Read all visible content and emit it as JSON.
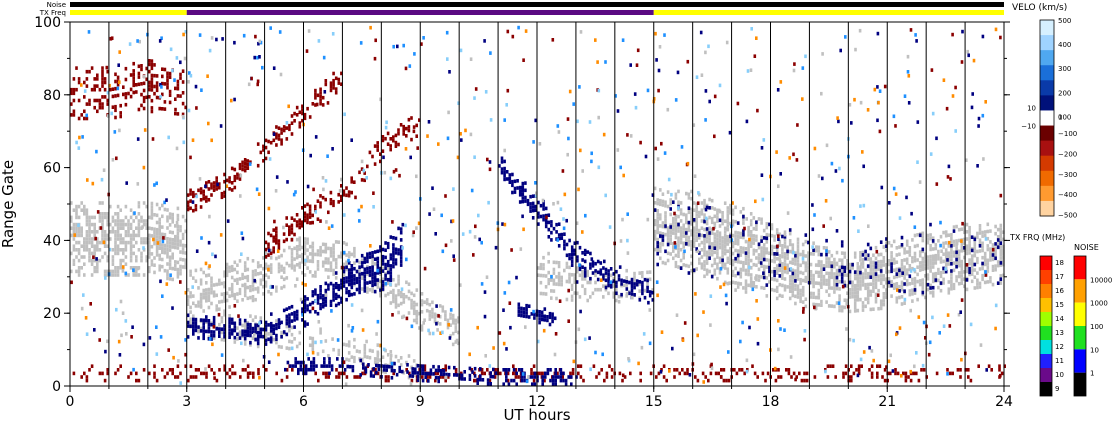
{
  "strip": {
    "noise_label": "Noise",
    "txfreq_label": "TX Freq"
  },
  "chart_data": {
    "type": "heatmap",
    "xlabel": "UT hours",
    "ylabel": "Range Gate",
    "xlim": [
      0,
      24
    ],
    "ylim": [
      0,
      100
    ],
    "x_ticks": [
      "0",
      "3",
      "6",
      "9",
      "12",
      "15",
      "18",
      "21",
      "24"
    ],
    "y_ticks": [
      "0",
      "20",
      "40",
      "60",
      "80",
      "100"
    ],
    "hour_marks": [
      1,
      2,
      3,
      4,
      5,
      6,
      7,
      8,
      9,
      10,
      11,
      12,
      13,
      14,
      15,
      16,
      17,
      18,
      19,
      20,
      21,
      22,
      23
    ],
    "txfreq_segments": [
      {
        "start": 0,
        "end": 3,
        "color": "#ffff00"
      },
      {
        "start": 3,
        "end": 15,
        "color": "#5a0a82"
      },
      {
        "start": 15,
        "end": 24,
        "color": "#ffff00"
      }
    ],
    "noise_segments": [
      {
        "start": 0,
        "end": 24,
        "color": "#000000"
      }
    ],
    "bands": [
      {
        "name": "ground-scatter",
        "color": "#c0c0c0",
        "points": [
          [
            0,
            40,
            10
          ],
          [
            1,
            40,
            10
          ],
          [
            2,
            40,
            10
          ],
          [
            3,
            38,
            10
          ]
        ],
        "density": 0.7
      },
      {
        "name": "ground-scatter",
        "color": "#c0c0c0",
        "points": [
          [
            3,
            25,
            6
          ],
          [
            4,
            27,
            6
          ],
          [
            5,
            30,
            6
          ],
          [
            6,
            36,
            6
          ],
          [
            7,
            34,
            5
          ],
          [
            8,
            28,
            5
          ],
          [
            9,
            20,
            5
          ],
          [
            10,
            14,
            4
          ]
        ],
        "density": 0.55
      },
      {
        "name": "ground-scatter",
        "color": "#c0c0c0",
        "points": [
          [
            12,
            30,
            6
          ],
          [
            13,
            28,
            5
          ],
          [
            14,
            27,
            4
          ],
          [
            15,
            28,
            4
          ]
        ],
        "density": 0.5
      },
      {
        "name": "ground-scatter",
        "color": "#c0c0c0",
        "points": [
          [
            15,
            44,
            10
          ],
          [
            16,
            42,
            11
          ],
          [
            17,
            38,
            12
          ],
          [
            18,
            34,
            10
          ],
          [
            19,
            30,
            9
          ],
          [
            20,
            28,
            8
          ],
          [
            21,
            30,
            9
          ],
          [
            22,
            33,
            9
          ],
          [
            23,
            35,
            9
          ],
          [
            24,
            36,
            8
          ]
        ],
        "density": 0.75
      },
      {
        "name": "ground-scatter",
        "color": "#c0c0c0",
        "points": [
          [
            3,
            18,
            4
          ],
          [
            5,
            14,
            4
          ],
          [
            7,
            10,
            4
          ],
          [
            9,
            4,
            3
          ]
        ],
        "density": 0.35
      },
      {
        "name": "ionospheric-neg",
        "color": "#8b0000",
        "points": [
          [
            0,
            80,
            7
          ],
          [
            1,
            80,
            7
          ],
          [
            2,
            82,
            7
          ],
          [
            3,
            80,
            6
          ]
        ],
        "density": 0.4
      },
      {
        "name": "ionospheric-neg",
        "color": "#8b0000",
        "points": [
          [
            3,
            50,
            3
          ],
          [
            4,
            55,
            3
          ],
          [
            5,
            65,
            3
          ],
          [
            6,
            75,
            3
          ],
          [
            7,
            85,
            3
          ]
        ],
        "density": 0.5
      },
      {
        "name": "ionospheric-neg",
        "color": "#8b0000",
        "points": [
          [
            5,
            38,
            3
          ],
          [
            6,
            46,
            4
          ],
          [
            7,
            52,
            3
          ],
          [
            8,
            65,
            3
          ],
          [
            9,
            72,
            3
          ]
        ],
        "density": 0.5
      },
      {
        "name": "ionospheric-neg",
        "color": "#8b0000",
        "points": [
          [
            0,
            3,
            2
          ],
          [
            6,
            3,
            2
          ],
          [
            12,
            3,
            2
          ],
          [
            18,
            3,
            2
          ],
          [
            24,
            3,
            2
          ]
        ],
        "density": 0.3
      },
      {
        "name": "ionospheric-pos",
        "color": "#000080",
        "points": [
          [
            3,
            16,
            3
          ],
          [
            5,
            14,
            3
          ],
          [
            6,
            20,
            4
          ],
          [
            7,
            28,
            5
          ],
          [
            8,
            32,
            6
          ],
          [
            8.5,
            38,
            6
          ]
        ],
        "density": 0.7
      },
      {
        "name": "ionospheric-pos",
        "color": "#000080",
        "points": [
          [
            5.5,
            5,
            2
          ],
          [
            7,
            5,
            2
          ],
          [
            8,
            4,
            2
          ],
          [
            9,
            3,
            2
          ],
          [
            11,
            2,
            2
          ],
          [
            13,
            2,
            2
          ]
        ],
        "density": 0.6
      },
      {
        "name": "ionospheric-pos",
        "color": "#000080",
        "points": [
          [
            11,
            60,
            3
          ],
          [
            12,
            48,
            4
          ],
          [
            13,
            35,
            4
          ],
          [
            14,
            28,
            3
          ],
          [
            15,
            25,
            3
          ]
        ],
        "density": 0.6
      },
      {
        "name": "ionospheric-pos",
        "color": "#000080",
        "points": [
          [
            11.5,
            20,
            2
          ],
          [
            12.5,
            18,
            2
          ]
        ],
        "density": 0.8
      },
      {
        "name": "ionospheric-pos",
        "color": "#000080",
        "points": [
          [
            15,
            42,
            10
          ],
          [
            18,
            36,
            9
          ],
          [
            21,
            32,
            8
          ],
          [
            24,
            36,
            8
          ]
        ],
        "density": 0.08
      }
    ],
    "scatter_colors": [
      "#8b0000",
      "#000080",
      "#c0c0c0",
      "#ff8c00",
      "#1e90ff",
      "#87cefa"
    ],
    "velocity_scale": {
      "title": "VELO (km/s)",
      "ticks": [
        "500",
        "400",
        "300",
        "200",
        "100",
        "10",
        "0",
        "−10",
        "−100",
        "−200",
        "−300",
        "−400",
        "−500"
      ],
      "colors": [
        "#d6f0ff",
        "#9fd3ff",
        "#4fa8f0",
        "#1a6fd9",
        "#0a3aa8",
        "#00117a",
        "#ffffff",
        "#6b0000",
        "#a81010",
        "#d43a00",
        "#f06a00",
        "#ff9a30",
        "#ffd3a0"
      ]
    },
    "txfreq_scale": {
      "title": "TX FRQ (MHz)",
      "ticks": [
        "18",
        "17",
        "16",
        "15",
        "14",
        "13",
        "12",
        "11",
        "10",
        "9"
      ],
      "colors": [
        "#ff0000",
        "#ff4000",
        "#ff8000",
        "#ffc000",
        "#a0ff00",
        "#20e020",
        "#00e0e0",
        "#2020ff",
        "#6a0a8a",
        "#000000"
      ]
    },
    "noise_scale": {
      "title": "NOISE",
      "ticks": [
        "10000",
        "1000",
        "100",
        "10",
        "1"
      ],
      "colors": [
        "#ff0000",
        "#ffa000",
        "#ffff00",
        "#20e020",
        "#0000ff",
        "#000000"
      ]
    }
  }
}
